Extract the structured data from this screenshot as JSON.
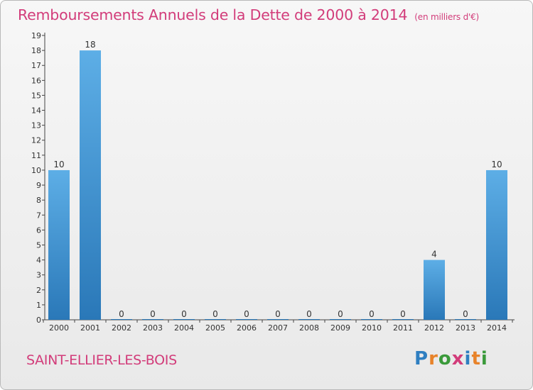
{
  "title": {
    "main": "Remboursements Annuels de la Dette de 2000 à 2014",
    "unit": "(en milliers d'€)"
  },
  "commune": "SAINT-ELLIER-LES-BOIS",
  "logo": {
    "text": "Proxiti",
    "letters": [
      {
        "ch": "P",
        "color": "#2f7fc1"
      },
      {
        "ch": "r",
        "color": "#e8832a"
      },
      {
        "ch": "o",
        "color": "#3a9a3a"
      },
      {
        "ch": "x",
        "color": "#d23c7a"
      },
      {
        "ch": "i",
        "color": "#2f7fc1"
      },
      {
        "ch": "t",
        "color": "#e8832a"
      },
      {
        "ch": "i",
        "color": "#3a9a3a"
      }
    ]
  },
  "colors": {
    "title": "#d23c7a",
    "bar_top": "#5daee6",
    "bar_bottom": "#2a78b8"
  },
  "chart_data": {
    "type": "bar",
    "title": "Remboursements Annuels de la Dette de 2000 à 2014",
    "categories": [
      "2000",
      "2001",
      "2002",
      "2003",
      "2004",
      "2005",
      "2006",
      "2007",
      "2008",
      "2009",
      "2010",
      "2011",
      "2012",
      "2013",
      "2014"
    ],
    "values": [
      10,
      18,
      0,
      0,
      0,
      0,
      0,
      0,
      0,
      0,
      0,
      0,
      4,
      0,
      10
    ],
    "yticks": [
      "0",
      "1",
      "2",
      "3",
      "4",
      "5",
      "6",
      "7",
      "8",
      "9",
      "10",
      "11",
      "12",
      "13",
      "14",
      "15",
      "16",
      "17",
      "18",
      "19"
    ],
    "ylim": [
      0,
      19
    ],
    "grid": false
  }
}
